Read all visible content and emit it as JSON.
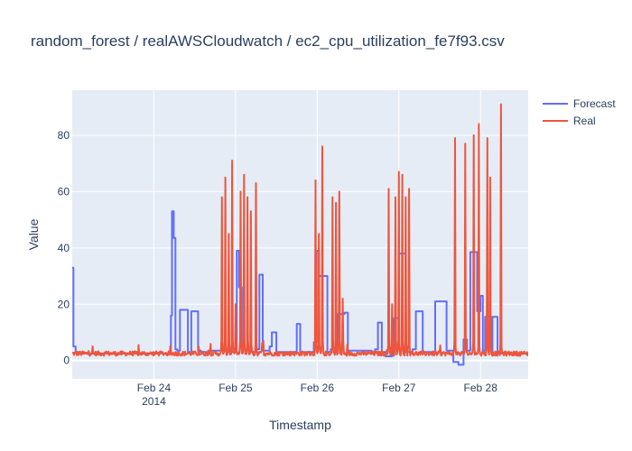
{
  "chart_data": {
    "type": "line",
    "title": "random_forest / realAWSCloudwatch / ec2_cpu_utilization_fe7f93.csv",
    "xlabel": "Timestamp",
    "ylabel": "Value",
    "x_tick_labels": [
      "Feb 24",
      "Feb 25",
      "Feb 26",
      "Feb 27",
      "Feb 28"
    ],
    "x_tick_sublabel": "2014",
    "y_ticks": [
      0,
      20,
      40,
      60,
      80
    ],
    "xlim": [
      "2014-02-23 00:00",
      "2014-02-28 14:00"
    ],
    "ylim": [
      -6.5,
      96
    ],
    "grid": true,
    "legend_position": "top-right",
    "series": [
      {
        "name": "Forecast",
        "color": "#636efa",
        "shape": "step",
        "x": [
          "2014-02-23 00:00",
          "2014-02-23 00:20",
          "2014-02-23 01:00",
          "2014-02-23 01:40",
          "2014-02-24 05:00",
          "2014-02-24 05:20",
          "2014-02-24 05:50",
          "2014-02-24 06:20",
          "2014-02-24 06:50",
          "2014-02-24 07:40",
          "2014-02-24 10:00",
          "2014-02-24 11:00",
          "2014-02-24 13:00",
          "2014-02-24 13:50",
          "2014-02-24 16:00",
          "2014-02-24 22:00",
          "2014-02-25 00:20",
          "2014-02-25 01:00",
          "2014-02-25 01:50",
          "2014-02-25 04:00",
          "2014-02-25 06:00",
          "2014-02-25 07:00",
          "2014-02-25 08:00",
          "2014-02-25 10:00",
          "2014-02-25 10:40",
          "2014-02-25 12:00",
          "2014-02-25 18:00",
          "2014-02-25 19:00",
          "2014-02-25 23:00",
          "2014-02-25 23:50",
          "2014-02-26 00:30",
          "2014-02-26 03:00",
          "2014-02-26 04:00",
          "2014-02-26 05:00",
          "2014-02-26 06:00",
          "2014-02-26 08:00",
          "2014-02-26 09:00",
          "2014-02-26 16:00",
          "2014-02-26 17:00",
          "2014-02-26 17:50",
          "2014-02-26 19:00",
          "2014-02-26 20:00",
          "2014-02-26 22:00",
          "2014-02-26 22:30",
          "2014-02-27 00:00",
          "2014-02-27 02:00",
          "2014-02-27 04:00",
          "2014-02-27 05:00",
          "2014-02-27 07:00",
          "2014-02-27 10:00",
          "2014-02-27 10:40",
          "2014-02-27 14:00",
          "2014-02-27 16:00",
          "2014-02-27 17:30",
          "2014-02-27 19:00",
          "2014-02-27 20:00",
          "2014-02-27 21:00",
          "2014-02-27 23:00",
          "2014-02-28 00:00",
          "2014-02-28 00:40",
          "2014-02-28 01:20",
          "2014-02-28 03:00",
          "2014-02-28 03:30",
          "2014-02-28 05:00",
          "2014-02-28 06:00",
          "2014-02-28 08:00",
          "2014-02-28 09:00",
          "2014-02-28 14:00"
        ],
        "y": [
          33,
          5,
          3,
          2.5,
          16,
          53,
          43.5,
          4,
          3.5,
          18,
          3,
          17.5,
          3.5,
          3,
          3.5,
          3,
          39,
          26,
          4,
          3,
          4,
          30.5,
          3.5,
          5,
          10,
          3,
          13,
          3,
          6.5,
          39,
          30,
          3,
          4,
          3,
          16.5,
          17,
          3.5,
          3,
          4,
          13.5,
          3,
          1.5,
          4,
          15,
          38,
          3,
          4,
          17.5,
          3,
          2.5,
          21,
          3.5,
          -0.5,
          -1.5,
          7.5,
          3.5,
          38.5,
          17.5,
          23,
          3.5,
          15.5,
          3.5,
          15.5,
          3,
          2.5,
          2.5,
          2.5,
          2.5
        ]
      },
      {
        "name": "Real",
        "color": "#ef553b",
        "shape": "linear",
        "baseline": 2.5,
        "spikes": [
          {
            "x": "2014-02-24 20:00",
            "y": 58
          },
          {
            "x": "2014-02-24 21:00",
            "y": 65
          },
          {
            "x": "2014-02-24 22:00",
            "y": 45
          },
          {
            "x": "2014-02-24 23:00",
            "y": 71
          },
          {
            "x": "2014-02-25 00:00",
            "y": 20
          },
          {
            "x": "2014-02-25 01:30",
            "y": 60
          },
          {
            "x": "2014-02-25 02:30",
            "y": 66
          },
          {
            "x": "2014-02-25 03:30",
            "y": 58
          },
          {
            "x": "2014-02-25 04:30",
            "y": 53
          },
          {
            "x": "2014-02-25 06:00",
            "y": 63
          },
          {
            "x": "2014-02-25 08:00",
            "y": 4
          },
          {
            "x": "2014-02-25 23:30",
            "y": 64
          },
          {
            "x": "2014-02-26 00:30",
            "y": 45
          },
          {
            "x": "2014-02-26 01:30",
            "y": 76
          },
          {
            "x": "2014-02-26 04:30",
            "y": 58
          },
          {
            "x": "2014-02-26 05:30",
            "y": 56
          },
          {
            "x": "2014-02-26 06:30",
            "y": 60
          },
          {
            "x": "2014-02-26 07:30",
            "y": 22
          },
          {
            "x": "2014-02-26 21:00",
            "y": 61
          },
          {
            "x": "2014-02-26 22:00",
            "y": 20
          },
          {
            "x": "2014-02-26 23:00",
            "y": 58
          },
          {
            "x": "2014-02-27 00:00",
            "y": 67
          },
          {
            "x": "2014-02-27 01:00",
            "y": 66
          },
          {
            "x": "2014-02-27 02:00",
            "y": 58
          },
          {
            "x": "2014-02-27 03:00",
            "y": 61
          },
          {
            "x": "2014-02-27 16:30",
            "y": 79
          },
          {
            "x": "2014-02-27 19:30",
            "y": 77
          },
          {
            "x": "2014-02-27 22:00",
            "y": 80
          },
          {
            "x": "2014-02-27 23:30",
            "y": 84
          },
          {
            "x": "2014-02-28 02:00",
            "y": 79
          },
          {
            "x": "2014-02-28 02:50",
            "y": 65
          },
          {
            "x": "2014-02-28 06:00",
            "y": 91
          }
        ]
      }
    ]
  }
}
